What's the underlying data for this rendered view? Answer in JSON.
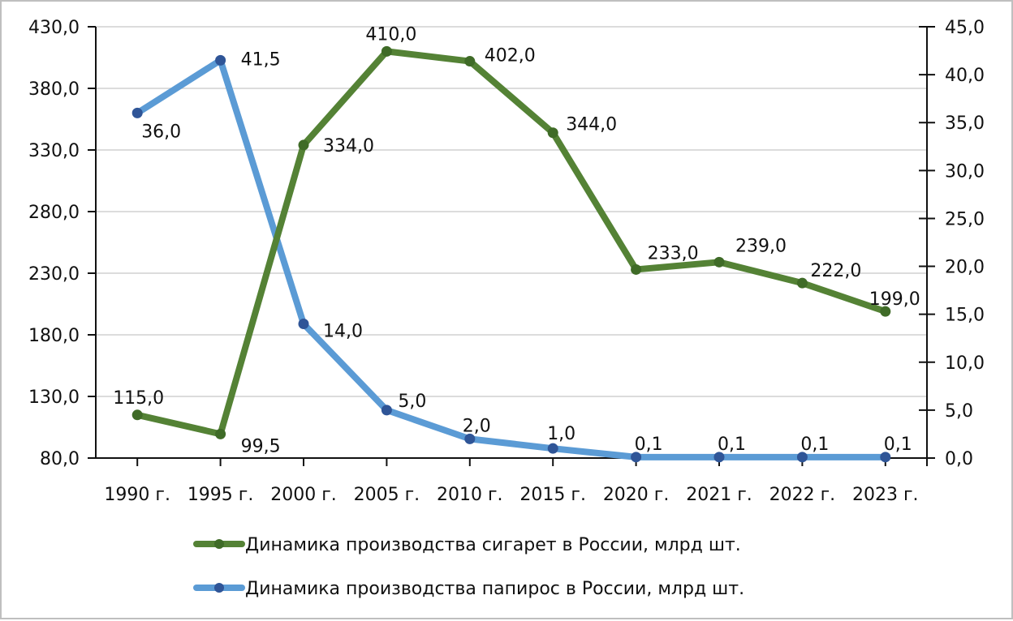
{
  "chart_data": {
    "type": "line",
    "title": "",
    "xlabel": "",
    "ylabel": "",
    "categories": [
      "1990 г.",
      "1995 г.",
      "2000 г.",
      "2005 г.",
      "2010 г.",
      "2015 г.",
      "2020 г.",
      "2021 г.",
      "2022 г.",
      "2023 г."
    ],
    "series": [
      {
        "name": "Динамика производства сигарет в России, млрд шт.",
        "axis": "left",
        "color": "#548235",
        "marker_color": "#3f6b27",
        "values": [
          115.0,
          99.5,
          334.0,
          410.0,
          402.0,
          344.0,
          233.0,
          239.0,
          222.0,
          199.0
        ],
        "labels": [
          "115,0",
          "99,5",
          "334,0",
          "410,0",
          "402,0",
          "344,0",
          "233,0",
          "239,0",
          "222,0",
          "199,0"
        ]
      },
      {
        "name": "Динамика производства папирос в России, млрд шт.",
        "axis": "right",
        "color": "#5b9bd5",
        "marker_color": "#2f5597",
        "values": [
          36.0,
          41.5,
          14.0,
          5.0,
          2.0,
          1.0,
          0.1,
          0.1,
          0.1,
          0.1
        ],
        "labels": [
          "36,0",
          "41,5",
          "14,0",
          "5,0",
          "2,0",
          "1,0",
          "0,1",
          "0,1",
          "0,1",
          "0,1"
        ]
      }
    ],
    "left_axis": {
      "ylim": [
        80,
        430
      ],
      "ticks": [
        "430,0",
        "380,0",
        "330,0",
        "280,0",
        "230,0",
        "180,0",
        "130,0",
        "80,0"
      ]
    },
    "right_axis": {
      "ylim": [
        0,
        45
      ],
      "ticks": [
        "45,0",
        "40,0",
        "35,0",
        "30,0",
        "25,0",
        "20,0",
        "15,0",
        "10,0",
        "5,0",
        "0,0"
      ]
    },
    "grid": true,
    "legend_position": "bottom"
  },
  "legend": {
    "items": [
      {
        "label": "Динамика производства сигарет в России, млрд шт.",
        "color": "#548235",
        "marker": "#3f6b27"
      },
      {
        "label": "Динамика производства папирос в России, млрд шт.",
        "color": "#5b9bd5",
        "marker": "#2f5597"
      }
    ]
  }
}
